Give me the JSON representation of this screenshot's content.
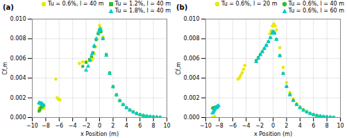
{
  "chart_data": [
    {
      "type": "scatter",
      "title": "(a)",
      "xlabel": "x Position (m)",
      "ylabel": "Cf,m",
      "xlim": [
        -10,
        10
      ],
      "xticks": [
        -10,
        -8,
        -6,
        -4,
        -2,
        0,
        2,
        4,
        6,
        8,
        10
      ],
      "ylim": [
        0.0,
        0.01
      ],
      "yticks": [
        {
          "value": 0.0,
          "label": "0.000"
        },
        {
          "value": 0.002,
          "label": "0.002"
        },
        {
          "value": 0.004,
          "label": "0.004"
        },
        {
          "value": 0.006,
          "label": "0.006"
        },
        {
          "value": 0.008,
          "label": "0.008"
        },
        {
          "value": 0.01,
          "label": "0.010"
        }
      ],
      "grid": true,
      "legend": "top",
      "series": [
        {
          "name": "Tu = 0.6%, l = 40 m",
          "color": "#e8e800",
          "marker": "circle",
          "x": [
            -9.0,
            -8.9,
            -8.8,
            -8.7,
            -8.6,
            -8.5,
            -8.4,
            -8.3,
            -6.5,
            -6.3,
            -6.1,
            -5.9,
            -3.0,
            -2.5,
            -2.0,
            -1.5,
            -1.2,
            -1.0,
            -0.8,
            -0.6,
            -0.4,
            -0.2,
            0.0,
            0.2,
            0.5,
            1.0,
            1.5,
            2.0,
            2.5,
            3.0,
            3.5,
            4.0,
            4.5,
            5.0,
            5.5,
            6.0,
            6.5,
            7.0,
            7.5,
            8.0,
            8.5,
            9.0
          ],
          "values": [
            0.00095,
            0.001,
            0.00105,
            0.0011,
            0.00105,
            0.001,
            0.001,
            0.00095,
            0.0039,
            0.002,
            0.00185,
            0.0018,
            0.0055,
            0.00565,
            0.0057,
            0.00578,
            0.00585,
            0.006,
            0.0065,
            0.0072,
            0.008,
            0.0087,
            0.00935,
            0.0091,
            0.0082,
            0.0064,
            0.0045,
            0.0031,
            0.00225,
            0.0017,
            0.0013,
            0.001,
            0.00075,
            0.00056,
            0.0004,
            0.00028,
            0.0002,
            0.00014,
            9e-05,
            6e-05,
            3e-05,
            2e-05
          ]
        },
        {
          "name": "Tu = 1.2%, l = 40 m",
          "color": "#33bb33",
          "marker": "square",
          "x": [
            -9.0,
            -8.9,
            -8.8,
            -8.7,
            -8.6,
            -8.5,
            -8.4,
            -8.3,
            -2.5,
            -2.0,
            -1.5,
            -1.2,
            -1.0,
            -0.8,
            -0.5,
            -0.2,
            0.0,
            0.2,
            0.5,
            1.0,
            1.5,
            2.0,
            2.5,
            3.0,
            3.5,
            4.0,
            4.5,
            5.0,
            5.5,
            6.0,
            6.5,
            7.0,
            7.5,
            8.0,
            8.5,
            9.0
          ],
          "values": [
            0.00065,
            0.00075,
            0.0009,
            0.001,
            0.0011,
            0.00115,
            0.0012,
            0.00125,
            0.0052,
            0.0056,
            0.0059,
            0.0062,
            0.0066,
            0.0072,
            0.0079,
            0.0085,
            0.0089,
            0.0087,
            0.008,
            0.0064,
            0.00455,
            0.00315,
            0.00232,
            0.00173,
            0.00132,
            0.001,
            0.00076,
            0.00057,
            0.00041,
            0.00029,
            0.0002,
            0.00014,
            0.0001,
            6e-05,
            4e-05,
            2e-05
          ]
        },
        {
          "name": "Tu = 1.8%, l = 40 m",
          "color": "#00cccc",
          "marker": "triangle",
          "x": [
            -9.0,
            -8.9,
            -8.8,
            -8.7,
            -8.6,
            -8.5,
            -8.4,
            -8.3,
            -2.0,
            -1.7,
            -1.4,
            -1.1,
            -0.8,
            -0.5,
            -0.2,
            0.0,
            0.2,
            0.5,
            1.0,
            1.5,
            2.0,
            2.5,
            3.0,
            3.5,
            4.0,
            4.5,
            5.0,
            5.5,
            6.0,
            6.5,
            7.0,
            7.5,
            8.0,
            8.5,
            9.0
          ],
          "values": [
            0.0015,
            0.00145,
            0.00145,
            0.0014,
            0.00145,
            0.00135,
            0.0013,
            0.00125,
            0.0048,
            0.0052,
            0.0058,
            0.0065,
            0.0073,
            0.008,
            0.0086,
            0.009,
            0.0089,
            0.008,
            0.0063,
            0.00445,
            0.0031,
            0.00228,
            0.0017,
            0.0013,
            0.00099,
            0.00075,
            0.00056,
            0.0004,
            0.00028,
            0.0002,
            0.00013,
            9e-05,
            6e-05,
            4e-05,
            2e-05
          ]
        }
      ]
    },
    {
      "type": "scatter",
      "title": "(b)",
      "xlabel": "x Position (m)",
      "ylabel": "Cf,m",
      "xlim": [
        -10,
        10
      ],
      "xticks": [
        -10,
        -8,
        -6,
        -4,
        -2,
        0,
        2,
        4,
        6,
        8,
        10
      ],
      "ylim": [
        0.0,
        0.01
      ],
      "yticks": [
        {
          "value": 0.0,
          "label": "0.000"
        },
        {
          "value": 0.002,
          "label": "0.002"
        },
        {
          "value": 0.004,
          "label": "0.004"
        },
        {
          "value": 0.006,
          "label": "0.006"
        },
        {
          "value": 0.008,
          "label": "0.008"
        },
        {
          "value": 0.01,
          "label": "0.010"
        }
      ],
      "grid": true,
      "legend": "top",
      "series": [
        {
          "name": "Tu = 0.6%, l = 20 m",
          "color": "#e8e800",
          "marker": "circle",
          "x": [
            -9.0,
            -8.9,
            -8.8,
            -8.7,
            -5.2,
            -5.0,
            -4.8,
            -4.6,
            -4.4,
            -4.2,
            -0.5,
            -0.3,
            -0.1,
            0.1,
            0.3,
            0.5,
            1.0,
            1.5,
            2.0,
            2.5,
            3.0,
            3.5,
            4.0,
            4.5,
            5.0,
            5.5,
            6.0,
            6.5,
            7.0,
            7.5,
            8.0,
            8.5,
            9.0
          ],
          "values": [
            0.0,
            0.0,
            0.0,
            0.0001,
            0.0039,
            0.00405,
            0.0043,
            0.00455,
            0.0049,
            0.0053,
            0.0085,
            0.0088,
            0.0093,
            0.0095,
            0.0093,
            0.0089,
            0.0071,
            0.0051,
            0.00355,
            0.00255,
            0.0019,
            0.00143,
            0.00108,
            0.00082,
            0.00062,
            0.00045,
            0.00032,
            0.00023,
            0.00016,
            0.00011,
            7e-05,
            4e-05,
            2e-05
          ]
        },
        {
          "name": "Tu = 0.6%, l = 40 m",
          "color": "#33bb33",
          "marker": "circle",
          "x": [
            -9.0,
            -8.9,
            -8.8,
            -8.7,
            -8.6,
            -8.5,
            -8.4,
            -8.3,
            -2.5,
            -2.2,
            -1.9,
            -1.6,
            -1.3,
            -1.0,
            -0.7,
            -0.4,
            -0.1,
            0.0,
            0.2,
            0.5,
            1.0,
            1.5,
            2.0,
            2.5,
            3.0,
            3.5,
            4.0,
            4.5,
            5.0,
            5.5,
            6.0,
            6.5,
            7.0,
            7.5,
            8.0,
            8.5,
            9.0
          ],
          "values": [
            0.00095,
            0.001,
            0.001,
            0.00102,
            0.00105,
            0.00105,
            0.00105,
            0.001,
            0.0058,
            0.0061,
            0.0064,
            0.0067,
            0.007,
            0.00735,
            0.0077,
            0.0081,
            0.0086,
            0.00875,
            0.0086,
            0.00795,
            0.0063,
            0.00448,
            0.00315,
            0.00232,
            0.00173,
            0.00132,
            0.001,
            0.00076,
            0.00057,
            0.00041,
            0.00029,
            0.0002,
            0.00014,
            0.0001,
            6e-05,
            4e-05,
            2e-05
          ]
        },
        {
          "name": "Tu = 0.6%, l = 60 m",
          "color": "#00cccc",
          "marker": "triangle",
          "x": [
            -9.0,
            -8.9,
            -8.8,
            -8.7,
            -8.6,
            -8.5,
            -8.4,
            -8.3,
            -8.2,
            -8.1,
            -2.5,
            -2.2,
            -1.9,
            -1.6,
            -1.3,
            -1.0,
            -0.7,
            -0.4,
            -0.1,
            0.0,
            0.2,
            0.5,
            1.0,
            1.5,
            2.0,
            2.5,
            3.0,
            3.5,
            4.0,
            4.5,
            5.0,
            5.5,
            6.0,
            6.5,
            7.0,
            7.5,
            8.0,
            8.5,
            9.0
          ],
          "values": [
            0.00045,
            0.00055,
            0.00068,
            0.0008,
            0.00092,
            0.001,
            0.00107,
            0.00113,
            0.00118,
            0.0012,
            0.00565,
            0.006,
            0.00635,
            0.00665,
            0.007,
            0.0073,
            0.0077,
            0.0081,
            0.00855,
            0.0087,
            0.00855,
            0.0079,
            0.00625,
            0.00445,
            0.00312,
            0.0023,
            0.00172,
            0.0013,
            0.00099,
            0.00075,
            0.00056,
            0.0004,
            0.00028,
            0.0002,
            0.00014,
            9e-05,
            6e-05,
            4e-05,
            2e-05
          ]
        }
      ]
    }
  ]
}
